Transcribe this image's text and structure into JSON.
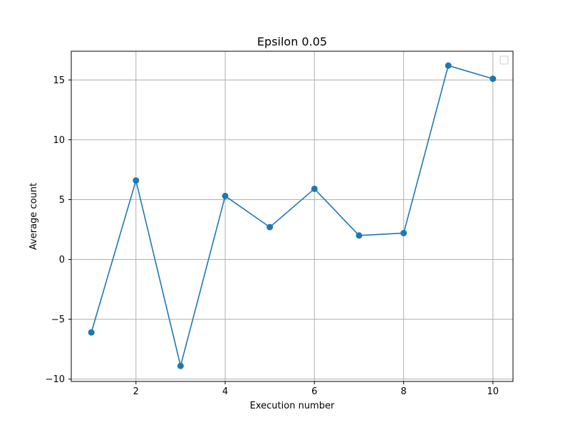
{
  "chart_data": {
    "type": "line",
    "title": "Epsilon 0.05",
    "xlabel": "Execution number",
    "ylabel": "Average count",
    "x": [
      1,
      2,
      3,
      4,
      5,
      6,
      7,
      8,
      9,
      10
    ],
    "series": [
      {
        "values": [
          -6.1,
          6.6,
          -8.9,
          5.3,
          2.7,
          5.9,
          2.0,
          2.2,
          16.2,
          15.1
        ],
        "color": "#1f77b4",
        "marker": "circle"
      }
    ],
    "xlim": [
      0.55,
      10.45
    ],
    "ylim": [
      -10.2,
      17.4
    ],
    "xticks": [
      2,
      4,
      6,
      8,
      10
    ],
    "yticks": [
      -10,
      -5,
      0,
      5,
      10,
      15
    ],
    "ytick_labels": [
      "−10",
      "−5",
      "0",
      "5",
      "10",
      "15"
    ],
    "grid": true,
    "legend": {
      "location": "upper right",
      "entries": []
    }
  }
}
